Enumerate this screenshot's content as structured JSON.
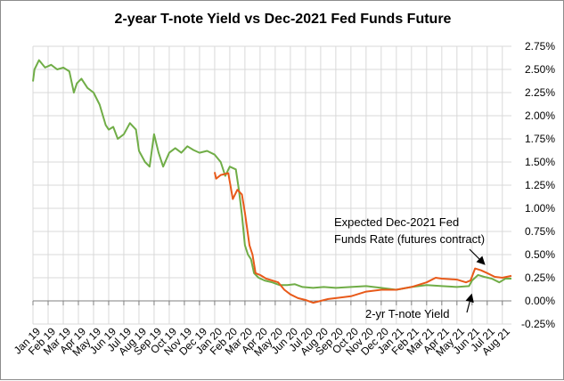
{
  "chart_data": {
    "type": "line",
    "title": "2-year T-note Yield vs Dec-2021 Fed Funds Future",
    "xlabel": "",
    "ylabel": "",
    "x_unit": "months since Jan 2019",
    "categories": [
      "Jan 19",
      "Feb 19",
      "Mar 19",
      "Apr 19",
      "May 19",
      "Jun 19",
      "Jul 19",
      "Aug 19",
      "Sep 19",
      "Oct 19",
      "Nov 19",
      "Dec 19",
      "Jan 20",
      "Feb 20",
      "Mar 20",
      "Apr 20",
      "May 20",
      "Jun 20",
      "Jul 20",
      "Aug 20",
      "Sep 20",
      "Oct 20",
      "Nov 20",
      "Dec 20",
      "Jan 21",
      "Feb 21",
      "Mar 21",
      "Apr 21",
      "May 21",
      "Jun 21",
      "Jul 21",
      "Aug 21"
    ],
    "yticks": [
      "-0.25%",
      "0.00%",
      "0.25%",
      "0.50%",
      "0.75%",
      "1.00%",
      "1.25%",
      "1.50%",
      "1.75%",
      "2.00%",
      "2.25%",
      "2.50%",
      "2.75%"
    ],
    "ylim": [
      -0.25,
      2.75
    ],
    "xlim": [
      0,
      31.6
    ],
    "grid": true,
    "series": [
      {
        "name": "2-yr T-note Yield",
        "color": "#70ad47",
        "x": [
          0,
          0.1,
          0.4,
          0.8,
          1.2,
          1.6,
          2.0,
          2.4,
          2.7,
          2.9,
          3.2,
          3.6,
          4.0,
          4.4,
          4.8,
          5.0,
          5.3,
          5.6,
          6.0,
          6.4,
          6.8,
          7.0,
          7.4,
          7.7,
          8.0,
          8.3,
          8.6,
          9.0,
          9.4,
          9.8,
          10.2,
          10.6,
          11.0,
          11.5,
          12.0,
          12.4,
          12.7,
          13.0,
          13.4,
          13.6,
          13.8,
          14.0,
          14.2,
          14.4,
          14.6,
          14.9,
          15.3,
          15.8,
          16.3,
          16.8,
          17.3,
          17.8,
          18.5,
          19.2,
          20,
          21,
          22,
          23,
          24,
          25,
          26,
          27,
          28,
          28.8,
          29.0,
          29.4,
          29.8,
          30.3,
          30.8,
          31.2,
          31.6
        ],
        "values": [
          2.37,
          2.5,
          2.6,
          2.52,
          2.55,
          2.5,
          2.52,
          2.48,
          2.25,
          2.35,
          2.4,
          2.3,
          2.25,
          2.12,
          1.9,
          1.85,
          1.88,
          1.75,
          1.8,
          1.92,
          1.85,
          1.62,
          1.5,
          1.45,
          1.8,
          1.6,
          1.45,
          1.6,
          1.65,
          1.6,
          1.67,
          1.63,
          1.6,
          1.62,
          1.58,
          1.5,
          1.35,
          1.45,
          1.42,
          1.2,
          0.93,
          0.6,
          0.5,
          0.45,
          0.3,
          0.25,
          0.22,
          0.2,
          0.17,
          0.17,
          0.18,
          0.15,
          0.14,
          0.15,
          0.14,
          0.15,
          0.16,
          0.14,
          0.12,
          0.15,
          0.17,
          0.16,
          0.15,
          0.16,
          0.22,
          0.28,
          0.26,
          0.24,
          0.2,
          0.24,
          0.24
        ]
      },
      {
        "name": "Expected Dec-2021 Fed Funds Rate (futures contract)",
        "color": "#e85a1a",
        "x": [
          12.0,
          12.1,
          12.4,
          12.9,
          13.2,
          13.5,
          13.8,
          14.0,
          14.3,
          14.5,
          14.7,
          15.0,
          15.4,
          15.8,
          16.2,
          16.6,
          17.0,
          17.5,
          18.0,
          18.5,
          19.0,
          19.5,
          20,
          21,
          22,
          23,
          24,
          25,
          26,
          26.6,
          27,
          28,
          28.6,
          28.9,
          29.2,
          29.6,
          30,
          30.5,
          31,
          31.6
        ],
        "values": [
          1.39,
          1.32,
          1.36,
          1.38,
          1.1,
          1.2,
          1.15,
          0.95,
          0.6,
          0.5,
          0.3,
          0.28,
          0.24,
          0.22,
          0.2,
          0.12,
          0.07,
          0.03,
          0.01,
          -0.02,
          0.0,
          0.02,
          0.03,
          0.05,
          0.1,
          0.12,
          0.12,
          0.15,
          0.2,
          0.25,
          0.24,
          0.23,
          0.2,
          0.22,
          0.35,
          0.33,
          0.3,
          0.26,
          0.25,
          0.27
        ]
      }
    ],
    "annotations": [
      {
        "text_lines": [
          "Expected Dec-2021 Fed",
          "Funds Rate (futures contract)"
        ]
      },
      {
        "text": "2-yr T-note Yield"
      }
    ],
    "legend": "none"
  }
}
